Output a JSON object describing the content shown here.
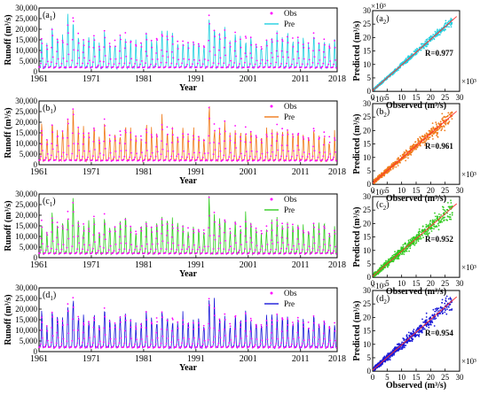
{
  "legend": {
    "obs": "Obs",
    "pre": "Pre"
  },
  "colors": {
    "obs": "#ff00ff",
    "fit_line": "#ff3030",
    "axis": "#000000"
  },
  "chart_data": [
    {
      "type": "line",
      "panel_label": "(a",
      "panel_sub": "1",
      "panel_close": ")",
      "ylabel": "Runoff (m³/s)",
      "xlabel": "Year",
      "ylim": [
        0,
        30000
      ],
      "yticks": [
        "0",
        "5,000",
        "10,000",
        "15,000",
        "20,000",
        "25,000",
        "30,000"
      ],
      "ytick_values": [
        0,
        5000,
        10000,
        15000,
        20000,
        25000,
        30000
      ],
      "xlim": [
        1961,
        2018
      ],
      "xticks": [
        "1961",
        "1971",
        "1981",
        "1991",
        "2001",
        "2011",
        "2018"
      ],
      "xtick_values": [
        1961,
        1971,
        1981,
        1991,
        2001,
        2011,
        2018
      ],
      "series": [
        {
          "name": "Obs",
          "style": "points",
          "color": "#ff00ff"
        },
        {
          "name": "Pre",
          "style": "line",
          "color": "#22d0e0"
        }
      ],
      "annual_peaks": [
        16500,
        12500,
        19500,
        16000,
        15200,
        22500,
        26500,
        17500,
        16000,
        14800,
        18500,
        12500,
        20500,
        13800,
        14500,
        17000,
        17500,
        15000,
        13200,
        14000,
        18200,
        14500,
        15500,
        19000,
        17000,
        16800,
        13800,
        15200,
        13800,
        15000,
        14000,
        13000,
        27000,
        20500,
        17000,
        19500,
        14000,
        18000,
        14500,
        18000,
        16500,
        14000,
        13000,
        15200,
        16000,
        18000,
        17000,
        16500,
        15000,
        16000,
        14000,
        13500,
        17500,
        14000,
        15500,
        13000,
        13500
      ],
      "annual_low": 2000
    },
    {
      "type": "line",
      "panel_label": "(b",
      "panel_sub": "1",
      "panel_close": ")",
      "ylabel": "Runoff (m³/s)",
      "xlabel": "Year",
      "ylim": [
        0,
        30000
      ],
      "yticks": [
        "0",
        "5,000",
        "10,000",
        "15,000",
        "20,000",
        "25,000",
        "30,000"
      ],
      "ytick_values": [
        0,
        5000,
        10000,
        15000,
        20000,
        25000,
        30000
      ],
      "xlim": [
        1961,
        2018
      ],
      "xticks": [
        "1961",
        "1971",
        "1981",
        "1991",
        "2001",
        "2011",
        "2018"
      ],
      "xtick_values": [
        1961,
        1971,
        1981,
        1991,
        2001,
        2011,
        2018
      ],
      "series": [
        {
          "name": "Obs",
          "style": "points",
          "color": "#ff00ff"
        },
        {
          "name": "Pre",
          "style": "line",
          "color": "#f07a1a"
        }
      ],
      "annual_peaks": [
        16500,
        12500,
        19500,
        16000,
        15200,
        22500,
        26500,
        17500,
        16000,
        14800,
        18500,
        12500,
        20500,
        13800,
        14500,
        17000,
        17500,
        15000,
        13200,
        14000,
        18200,
        14500,
        15500,
        19000,
        17000,
        16800,
        13800,
        15200,
        13800,
        15000,
        14000,
        13000,
        27000,
        20500,
        17000,
        19500,
        14000,
        18000,
        14500,
        18000,
        16500,
        14000,
        13000,
        15200,
        16000,
        18000,
        17000,
        16500,
        15000,
        16000,
        14000,
        13500,
        17500,
        14000,
        15500,
        13000,
        13500
      ],
      "annual_low": 2000
    },
    {
      "type": "line",
      "panel_label": "(c",
      "panel_sub": "1",
      "panel_close": ")",
      "ylabel": "Runoff (m³/s)",
      "xlabel": "Year",
      "ylim": [
        0,
        30000
      ],
      "yticks": [
        "0",
        "5,000",
        "10,000",
        "15,000",
        "20,000",
        "25,000",
        "30,000"
      ],
      "ytick_values": [
        0,
        5000,
        10000,
        15000,
        20000,
        25000,
        30000
      ],
      "xlim": [
        1961,
        2018
      ],
      "xticks": [
        "1961",
        "1971",
        "1981",
        "1991",
        "2001",
        "2011",
        "2018"
      ],
      "xtick_values": [
        1961,
        1971,
        1981,
        1991,
        2001,
        2011,
        2018
      ],
      "series": [
        {
          "name": "Obs",
          "style": "points",
          "color": "#ff00ff"
        },
        {
          "name": "Pre",
          "style": "line",
          "color": "#33cc22"
        }
      ],
      "annual_peaks": [
        16500,
        12500,
        19500,
        16000,
        15200,
        22500,
        26500,
        17500,
        16000,
        14800,
        18500,
        12500,
        20500,
        13800,
        14500,
        17000,
        17500,
        15000,
        13200,
        14000,
        18200,
        14500,
        15500,
        19000,
        17000,
        16800,
        13800,
        15200,
        13800,
        15000,
        14000,
        13000,
        27000,
        20500,
        17000,
        19500,
        14000,
        18000,
        14500,
        18000,
        16500,
        14000,
        13000,
        15200,
        16000,
        18000,
        17000,
        16500,
        15000,
        16000,
        14000,
        13500,
        17500,
        14000,
        15500,
        13000,
        13500
      ],
      "annual_low": 2000
    },
    {
      "type": "line",
      "panel_label": "(d",
      "panel_sub": "1",
      "panel_close": ")",
      "ylabel": "Runoff (m³/s)",
      "xlabel": "Year",
      "ylim": [
        0,
        30000
      ],
      "yticks": [
        "0",
        "5,000",
        "10,000",
        "15,000",
        "20,000",
        "25,000",
        "30,000"
      ],
      "ytick_values": [
        0,
        5000,
        10000,
        15000,
        20000,
        25000,
        30000
      ],
      "xlim": [
        1961,
        2018
      ],
      "xticks": [
        "1961",
        "1971",
        "1981",
        "1991",
        "2001",
        "2011",
        "2018"
      ],
      "xtick_values": [
        1961,
        1971,
        1981,
        1991,
        2001,
        2011,
        2018
      ],
      "series": [
        {
          "name": "Obs",
          "style": "points",
          "color": "#ff00ff"
        },
        {
          "name": "Pre",
          "style": "line",
          "color": "#1a1ad8"
        }
      ],
      "annual_peaks": [
        16500,
        12500,
        19500,
        16000,
        15200,
        22500,
        26500,
        17500,
        16000,
        14800,
        18500,
        12500,
        20500,
        13800,
        14500,
        17000,
        17500,
        15000,
        13200,
        14000,
        18200,
        14500,
        15500,
        19000,
        17000,
        16800,
        13800,
        15200,
        13800,
        15000,
        14000,
        13000,
        27000,
        20500,
        17000,
        19500,
        14000,
        18000,
        14500,
        18000,
        16500,
        14000,
        13000,
        15200,
        16000,
        18000,
        17000,
        16500,
        15000,
        16000,
        14000,
        13500,
        17500,
        14000,
        15500,
        13000,
        13500
      ],
      "annual_low": 2000
    },
    {
      "type": "scatter",
      "panel_label": "(a",
      "panel_sub": "2",
      "panel_close": ")",
      "xlabel": "Observed (m³/s)",
      "ylabel": "Predicted (m³/s)",
      "multiplier": "×10³",
      "xlim": [
        0,
        30
      ],
      "ylim": [
        0,
        30
      ],
      "xticks": [
        "0",
        "5",
        "10",
        "15",
        "20",
        "25",
        "30"
      ],
      "yticks": [
        "0",
        "5",
        "10",
        "15",
        "20",
        "25",
        "30"
      ],
      "tick_values": [
        0,
        5,
        10,
        15,
        20,
        25,
        30
      ],
      "annotation": "R=0.977",
      "r": 0.977,
      "point_color": "#22d0e0",
      "fit_line": {
        "slope": 0.95,
        "intercept": 0.3
      },
      "point_count": 680
    },
    {
      "type": "scatter",
      "panel_label": "(b",
      "panel_sub": "2",
      "panel_close": ")",
      "xlabel": "Observed (m³/s)",
      "ylabel": "Predicted (m³/s)",
      "multiplier": "×10³",
      "xlim": [
        0,
        30
      ],
      "ylim": [
        0,
        30
      ],
      "xticks": [
        "0",
        "5",
        "10",
        "15",
        "20",
        "25",
        "30"
      ],
      "yticks": [
        "0",
        "5",
        "10",
        "15",
        "20",
        "25",
        "30"
      ],
      "tick_values": [
        0,
        5,
        10,
        15,
        20,
        25,
        30
      ],
      "annotation": "R=0.961",
      "r": 0.961,
      "point_color": "#f07a1a",
      "fit_line": {
        "slope": 0.92,
        "intercept": 0.5
      },
      "point_count": 680
    },
    {
      "type": "scatter",
      "panel_label": "(c",
      "panel_sub": "2",
      "panel_close": ")",
      "xlabel": "Observed (m³/s)",
      "ylabel": "Predicted (m³/s)",
      "multiplier": "×10³",
      "xlim": [
        0,
        30
      ],
      "ylim": [
        0,
        30
      ],
      "xticks": [
        "0",
        "5",
        "10",
        "15",
        "20",
        "25",
        "30"
      ],
      "yticks": [
        "0",
        "5",
        "10",
        "15",
        "20",
        "25",
        "30"
      ],
      "tick_values": [
        0,
        5,
        10,
        15,
        20,
        25,
        30
      ],
      "annotation": "R=0.952",
      "r": 0.952,
      "point_color": "#33cc22",
      "fit_line": {
        "slope": 0.93,
        "intercept": 0.4
      },
      "point_count": 680
    },
    {
      "type": "scatter",
      "panel_label": "(d",
      "panel_sub": "2",
      "panel_close": ")",
      "xlabel": "Observed (m³/s)",
      "ylabel": "Predicted (m³/s)",
      "multiplier": "×10³",
      "xlim": [
        0,
        30
      ],
      "ylim": [
        0,
        30
      ],
      "xticks": [
        "0",
        "5",
        "10",
        "15",
        "20",
        "25",
        "30"
      ],
      "yticks": [
        "0",
        "5",
        "10",
        "15",
        "20",
        "25",
        "30"
      ],
      "tick_values": [
        0,
        5,
        10,
        15,
        20,
        25,
        30
      ],
      "annotation": "R=0.954",
      "r": 0.954,
      "point_color": "#1a1ad8",
      "fit_line": {
        "slope": 0.94,
        "intercept": 0.4
      },
      "point_count": 680
    }
  ]
}
